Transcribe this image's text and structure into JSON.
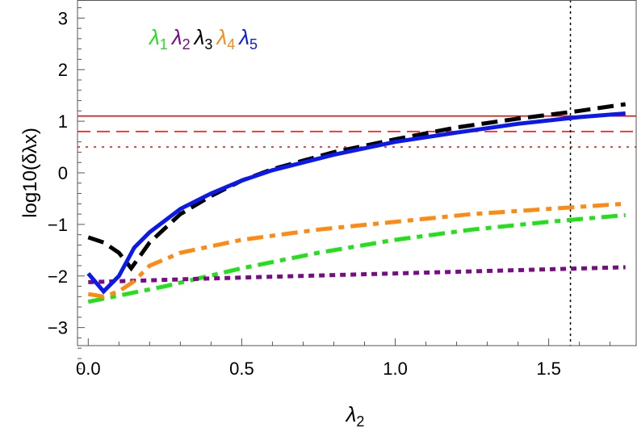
{
  "chart_data": {
    "type": "line",
    "xlabel": "λ2",
    "ylabel": "log10(δλx)",
    "xlim": [
      -0.035,
      1.785
    ],
    "ylim": [
      -3.35,
      3.35
    ],
    "xticks": [
      "0.0",
      "0.5",
      "1.0",
      "1.5"
    ],
    "xtick_values": [
      0,
      0.5,
      1.0,
      1.5
    ],
    "yticks": [
      "3",
      "2",
      "1",
      "0",
      "−1",
      "−2",
      "−3"
    ],
    "ytick_values": [
      3,
      2,
      1,
      0,
      -1,
      -2,
      -3
    ],
    "legend": {
      "placement": "top-left",
      "entries": [
        {
          "base": "λ",
          "sub": "1",
          "color": "#22e01a"
        },
        {
          "base": "λ",
          "sub": "2",
          "color": "#7a0a85"
        },
        {
          "base": "λ",
          "sub": "3",
          "color": "#000000"
        },
        {
          "base": "λ",
          "sub": "4",
          "color": "#ff8a12"
        },
        {
          "base": "λ",
          "sub": "5",
          "color": "#0a1aee"
        }
      ]
    },
    "series": [
      {
        "name": "λ1",
        "color": "#22e01a",
        "style": "dashdot",
        "x": [
          0,
          0.25,
          0.5,
          0.75,
          1.0,
          1.25,
          1.5,
          1.75
        ],
        "y": [
          -2.5,
          -2.2,
          -1.85,
          -1.55,
          -1.3,
          -1.1,
          -0.95,
          -0.82
        ]
      },
      {
        "name": "λ2",
        "color": "#7a0a85",
        "style": "dotted",
        "x": [
          0,
          0.5,
          1.0,
          1.5,
          1.75
        ],
        "y": [
          -2.12,
          -2.03,
          -1.95,
          -1.87,
          -1.83
        ]
      },
      {
        "name": "λ3",
        "color": "#000000",
        "style": "dashed",
        "x": [
          0,
          0.05,
          0.1,
          0.14,
          0.2,
          0.3,
          0.4,
          0.5,
          0.6,
          0.8,
          1.0,
          1.2,
          1.4,
          1.6,
          1.75
        ],
        "y": [
          -1.25,
          -1.35,
          -1.55,
          -1.85,
          -1.35,
          -0.8,
          -0.45,
          -0.15,
          0.07,
          0.4,
          0.65,
          0.88,
          1.05,
          1.2,
          1.33
        ]
      },
      {
        "name": "λ4",
        "color": "#ff8a12",
        "style": "dashdot",
        "x": [
          0,
          0.05,
          0.1,
          0.15,
          0.2,
          0.3,
          0.5,
          0.75,
          1.0,
          1.25,
          1.5,
          1.75
        ],
        "y": [
          -2.35,
          -2.4,
          -2.3,
          -2.1,
          -1.8,
          -1.55,
          -1.3,
          -1.1,
          -0.95,
          -0.8,
          -0.7,
          -0.6
        ]
      },
      {
        "name": "λ5",
        "color": "#0a1aee",
        "style": "solid",
        "x": [
          0,
          0.05,
          0.1,
          0.15,
          0.2,
          0.3,
          0.4,
          0.5,
          0.6,
          0.8,
          1.0,
          1.2,
          1.4,
          1.6,
          1.75
        ],
        "y": [
          -1.95,
          -2.3,
          -2.0,
          -1.45,
          -1.15,
          -0.7,
          -0.4,
          -0.15,
          0.05,
          0.35,
          0.6,
          0.78,
          0.95,
          1.08,
          1.15
        ]
      }
    ],
    "hlines": [
      {
        "y": 1.1,
        "color": "#ff0000",
        "style": "solid"
      },
      {
        "y": 0.8,
        "color": "#ff0000",
        "style": "dashed"
      },
      {
        "y": 0.5,
        "color": "#ff0000",
        "style": "dotted"
      }
    ],
    "vlines": [
      {
        "x": 1.5708,
        "color": "#000000",
        "style": "dotted"
      }
    ],
    "grid": false
  }
}
